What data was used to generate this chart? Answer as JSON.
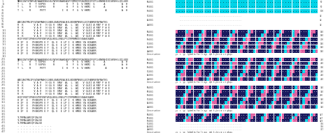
{
  "bg": "#ffffff",
  "navy": "#1a1a5e",
  "cyan": "#00d4e8",
  "pink": "#e060a0",
  "left_rows": [
    [
      "1",
      "MASEIATSFNRSATAAAVRAVLKLPAYKEAAKEASPYQMVQYFDAQREHIFEPCLKNKNHIEIGKVHGLQILGDEK"
    ],
    [
      "11",
      "T  L    R   T SSPVS     R        K   F  G  V HKMI  G      A           A  H L"
    ],
    [
      "21",
      "T  L    R   T SSPVS     R        K   F  G  V HKMI  G      A           A  H L"
    ],
    [
      "31",
      "T  L    R      PVTT           I  K   F  G  V HKMI          A          A  H L"
    ],
    [
      "41",
      ""
    ],
    [
      "51",
      ""
    ],
    [
      "61",
      ""
    ],
    [
      "71",
      "AAEIAKTMGIPSVDAFMAHQGGNVLGNAVREALNILNDQNPNVEGLEIFANRNYAFNWTEG"
    ],
    [
      "81",
      "R  K       V A V   H GG V  NAV  AL  L  AQ   V GLEI A RNY F W E"
    ],
    [
      "91",
      "R  K       V A V   H GG V  NAV  AL  L  AQ   V GLEI A RNY F W E"
    ],
    [
      "101",
      "R  K       V A V   H GG V  NAV  AL  L  AQ   V GLEI A RNY F W E"
    ],
    [
      "111",
      "R  K       V A V   H GG V  NAV  AL  L  AQ   V GLEI A RNY F W E"
    ],
    [
      "121",
      "R  K       V A V   H GG V  NAV  AL  L  AQ   V GLEI A RNY F W E"
    ],
    [
      "131",
      "HYIFSRETIPHNKSPVFENFVKQLHEGLENELPYITKMHMEESYAAHIKARR"
    ],
    [
      "141",
      "H IF  E   PHNKSPV E F  QL E  E LP I  K HMEE YA HIKARR"
    ],
    [
      "151",
      "H IF  E   PHNKSPV E F  QL E  E LP I  K HMEE YA HIKARR"
    ],
    [
      "161",
      "H IF  E   PHNKSPV E F  QL E  E LP I  K HMEE YA HIKARR"
    ],
    [
      "171",
      "H IF  E   PHNKSPV E F  QL E  E LP I  K HMEE YA HIKARR"
    ],
    [
      "181",
      "H IF  E   PHNKSPV E F  QL E  E LP I  K HMEE YA HIKARR"
    ],
    [
      "191",
      ""
    ],
    [
      "201",
      "MASEIATSFNRSATAAAVRAVLKLPAYKEAAKEASPYQMVQYFDAQREHIFEPCLKNKNHIEIGKVHGLQILGDEK"
    ],
    [
      "211",
      "T  L    R   T SSPVS     R        K   F  G  V HKMI  G      A           A  H L"
    ],
    [
      "221",
      "T  L    R   T SSPVS     R        K   F  G  V HKMI  G      A           A  H L"
    ],
    [
      "231",
      "T  L    R      PVTT           I  K   F  G  V HKMI          A          A  H L"
    ],
    [
      "241",
      ""
    ],
    [
      "251",
      ""
    ],
    [
      "261",
      ""
    ],
    [
      "271",
      "AAEIAKTMGIPSVDAFMAHQGGNVLGNAVREALNILNDQNPNVEGLEIFANRNYAFNWTEG"
    ],
    [
      "281",
      "R  K       V A V   H GG V  NAV  AL  L  AQ   V GLEI A RNY F W E"
    ],
    [
      "291",
      "R  K       V A V   H GG V  NAV  AL  L  AQ   V GLEI A RNY F W E"
    ],
    [
      "301",
      "R  K       V A V   H GG V  NAV  AL  L  AQ   V GLEI A RNY F W E"
    ],
    [
      "311",
      "R  K       V A V   H GG V  NAV  AL  L  AQ   V GLEI A RNY F W E"
    ],
    [
      "321",
      "R  K       V A V   H GG V  NAV  AL  L  AQ   V GLEI A RNY F W E"
    ],
    [
      "331",
      "HYIFSRETIPHNKSPVFENFVKQLHEGLENELPYITKMHMEESYAAHIKARR"
    ],
    [
      "341",
      "H IF  E   PHNKSPV E F  QL E  E LP I  K HMEE YA HIKARR"
    ],
    [
      "351",
      "H IF  E   PHNKSPV E F  QL E  E LP I  K HMEE YA HIKARR"
    ],
    [
      "361",
      "H IF  E   PHNKSPV E F  QL E  E LP I  K HMEE YA HIKARR"
    ],
    [
      "371",
      "H IF  E   PHNKSPV E F  QL E  E LP I  K HMEE YA HIKARR"
    ],
    [
      "381",
      "H IF  E   PHNKSPV E F  QL E  E LP I  K HMEE YA HIKARR"
    ],
    [
      "391",
      ""
    ],
    [
      "401",
      "TLTRMALARCQFIALSE"
    ],
    [
      "411",
      "TLTRMALARCQFIALSE"
    ],
    [
      "421",
      "TLTRMALARCQFIALSE"
    ],
    [
      "431",
      ". . . . . . . . . . . ."
    ],
    [
      "441",
      ". . . . . . . . . . . ."
    ],
    [
      "447",
      ". . . . . . . . . . . ."
    ]
  ],
  "right_blocks": [
    {
      "labels": [
        "MsGS1",
        "MtGS1",
        "PvGS1",
        "SlGS1",
        "AtGS1",
        "ZmGS1"
      ],
      "n_seq_rows": 3,
      "n_dot_rows": 3,
      "has_consensus": false,
      "top_color": "cyan",
      "numbers": [
        50,
        50,
        100,
        42,
        42,
        42
      ]
    },
    {
      "labels": [
        "MsGS1",
        "MtGS1",
        "PvGS1",
        "SlGS1",
        "AtGS1",
        "ZmGS1"
      ],
      "n_seq_rows": 6,
      "n_dot_rows": 0,
      "has_consensus": true,
      "top_color": "mixed",
      "numbers": [
        140,
        140,
        200,
        140,
        140,
        140
      ]
    },
    {
      "labels": [
        "MsGS1",
        "MtGS1",
        "PvGS1",
        "SlGS1",
        "AtGS1",
        "ZmGS1"
      ],
      "n_seq_rows": 6,
      "n_dot_rows": 0,
      "has_consensus": true,
      "top_color": "mixed",
      "numbers": [
        240,
        240,
        300,
        240,
        240,
        240
      ]
    },
    {
      "labels": [
        "MsGS1",
        "MtGS1",
        "PvGS1",
        "SlGS1",
        "AtGS1",
        "ZmGS1"
      ],
      "n_seq_rows": 6,
      "n_dot_rows": 0,
      "has_consensus": true,
      "top_color": "mixed",
      "numbers": [
        340,
        340,
        400,
        340,
        340,
        340
      ]
    },
    {
      "labels": [
        "MsGS1",
        "MtGS1",
        "PvGS1",
        "SlGS1",
        "AtGS1",
        "ZmGS1"
      ],
      "n_seq_rows": 3,
      "n_dot_rows": 3,
      "has_consensus": true,
      "top_color": "cyan",
      "numbers": [
        427,
        427,
        429,
        356,
        356,
        357
      ]
    }
  ]
}
